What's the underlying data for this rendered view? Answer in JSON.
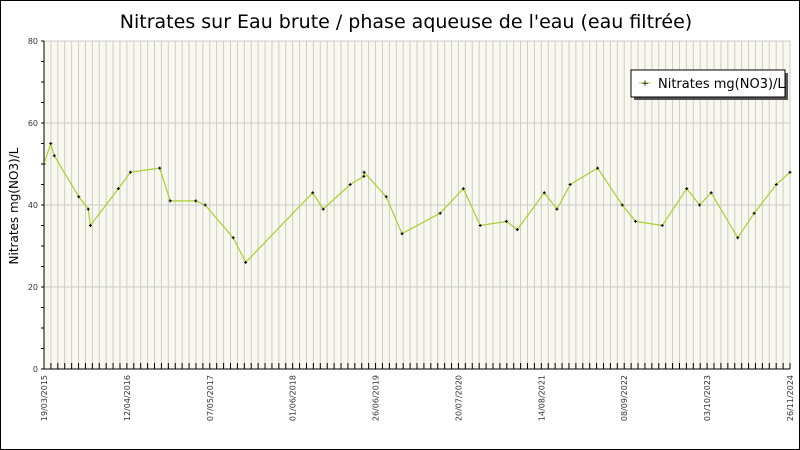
{
  "chart_data": {
    "type": "line",
    "title": "Nitrates sur Eau brute / phase aqueuse de l'eau (eau filtrée)",
    "xlabel": "",
    "ylabel": "Nitrates mg(NO3)/L",
    "ylim": [
      0,
      80
    ],
    "yticks": [
      "0",
      "20",
      "40",
      "60",
      "80"
    ],
    "xlim": [
      "2015-03-19",
      "2024-11-26"
    ],
    "xticks": [
      "19/03/2015",
      "12/04/2016",
      "07/05/2017",
      "01/06/2018",
      "26/06/2019",
      "20/07/2020",
      "14/08/2021",
      "08/09/2022",
      "03/10/2023",
      "26/11/2024"
    ],
    "grid": true,
    "legend": "top-right",
    "colors": {
      "line": "#a8d030",
      "marker": "#000000",
      "plot_bg": "#f8f8ee",
      "grid": "#cccccc"
    },
    "series": [
      {
        "name": "Nitrates mg(NO3)/L",
        "x": [
          "2015-03-19",
          "2015-04-20",
          "2015-05-07",
          "2015-08-31",
          "2015-10-15",
          "2015-10-25",
          "2016-03-06",
          "2016-05-02",
          "2016-09-18",
          "2016-11-07",
          "2017-03-08",
          "2017-04-22",
          "2017-09-02",
          "2017-10-31",
          "2018-09-14",
          "2018-11-03",
          "2019-03-11",
          "2019-05-15",
          "2019-05-16",
          "2019-08-29",
          "2019-11-12",
          "2020-05-11",
          "2020-08-29",
          "2020-11-17",
          "2021-03-21",
          "2021-05-12",
          "2021-09-17",
          "2021-11-16",
          "2022-01-18",
          "2022-05-28",
          "2022-09-22",
          "2022-11-24",
          "2023-03-31",
          "2023-07-25",
          "2023-09-24",
          "2023-11-18",
          "2024-03-23",
          "2024-06-09",
          "2024-09-22",
          "2024-11-26"
        ],
        "y": [
          50,
          55,
          52,
          42,
          39,
          35,
          44,
          48,
          49,
          41,
          41,
          40,
          32,
          26,
          43,
          39,
          45,
          47,
          48,
          42,
          33,
          38,
          44,
          35,
          36,
          34,
          43,
          39,
          45,
          49,
          40,
          36,
          35,
          44,
          40,
          43,
          32,
          38,
          45,
          48
        ]
      }
    ]
  }
}
